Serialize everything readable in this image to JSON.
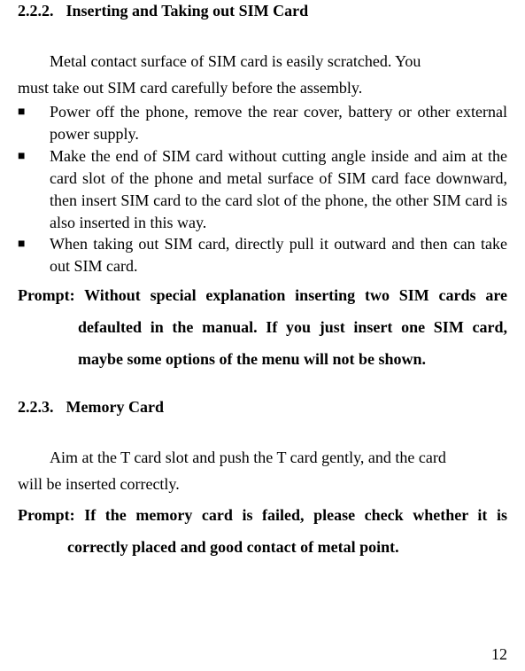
{
  "section222": {
    "number": "2.2.2.",
    "title": "Inserting and Taking out SIM Card",
    "intro_line1": "Metal contact surface of SIM card is easily scratched. You",
    "intro_line2": "must take out SIM card carefully before the assembly.",
    "bullets": [
      "Power off the phone, remove the rear cover, battery or other external power supply.",
      "Make the end of SIM card without cutting angle inside and aim at the card slot of the phone and metal surface of SIM card face downward, then insert SIM card to the card slot of the phone, the other SIM card is also inserted in this way.",
      "When taking out SIM card, directly pull it outward and then can take out SIM card."
    ],
    "prompt": "Prompt: Without special explanation inserting two SIM cards are defaulted in the manual. If you just insert one SIM card, maybe some options of the menu will not be shown."
  },
  "section223": {
    "number": "2.2.3.",
    "title": "Memory Card",
    "intro_line1": "Aim at the T card slot and push the T card gently, and the card",
    "intro_line2": "will be inserted correctly.",
    "prompt": "Prompt: If the memory card is failed, please check whether it is correctly placed and good contact of metal point."
  },
  "bullet_glyph": "■",
  "page_number": "12"
}
